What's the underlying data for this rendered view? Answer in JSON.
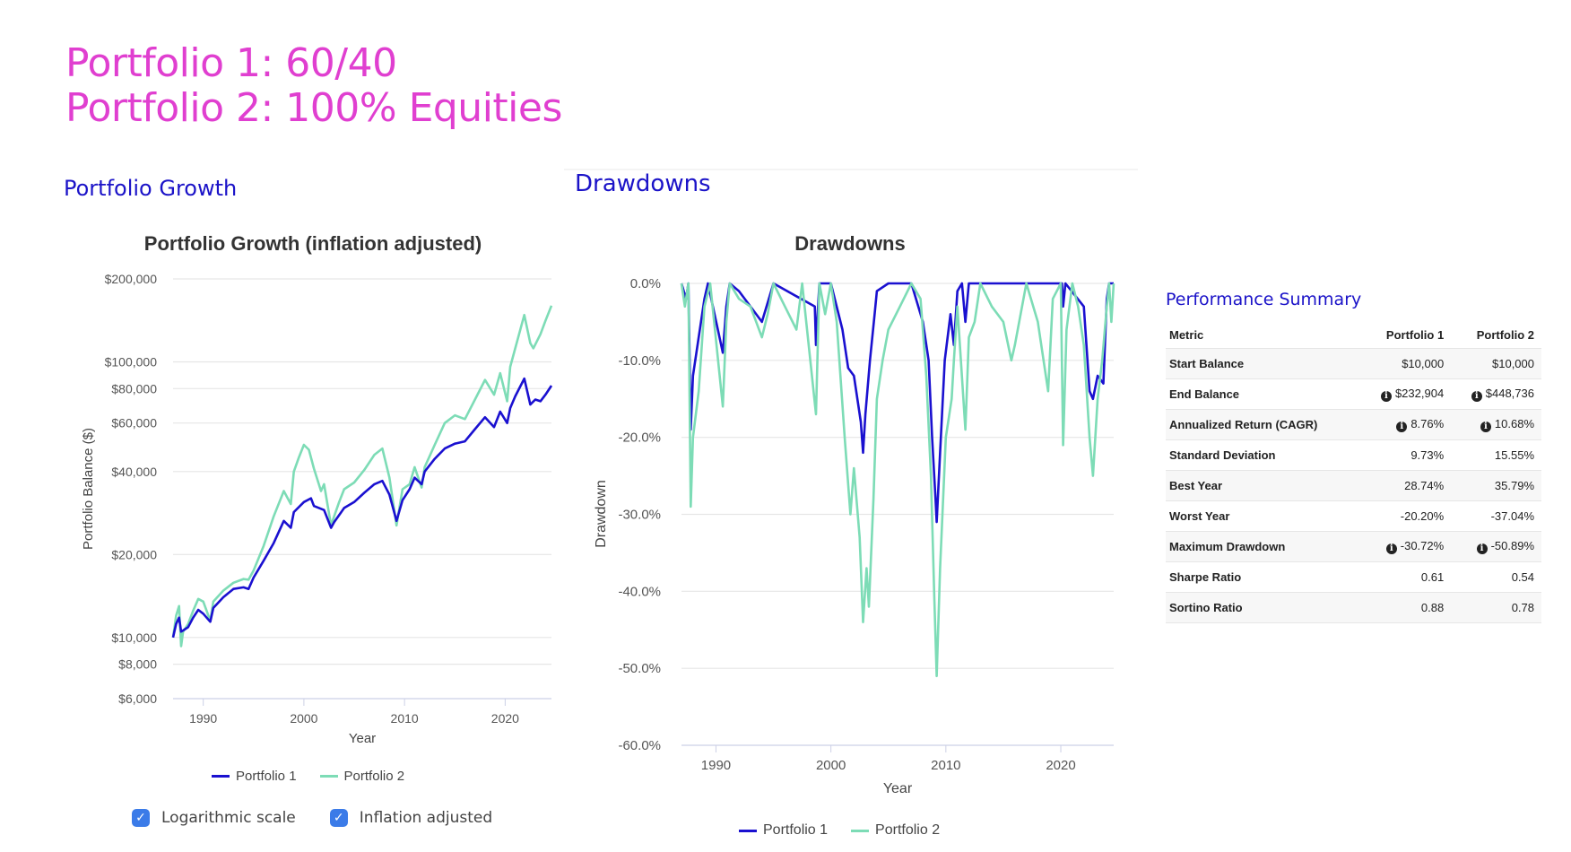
{
  "banner": {
    "line1": "Portfolio 1: 60/40",
    "line2": "Portfolio 2: 100% Equities",
    "color": "#e03fd0"
  },
  "sections": {
    "growth_heading": "Portfolio Growth",
    "drawdowns_heading": "Drawdowns",
    "performance_heading": "Performance Summary",
    "heading_color": "#1b13c8"
  },
  "series_colors": {
    "p1": "#1a10d0",
    "p2": "#7ddcb6"
  },
  "legend": {
    "p1": "Portfolio 1",
    "p2": "Portfolio 2"
  },
  "controls": {
    "log_scale": {
      "label": "Logarithmic scale",
      "checked": true
    },
    "inflation_adjusted": {
      "label": "Inflation adjusted",
      "checked": true
    },
    "check_glyph": "✓"
  },
  "chart_data": [
    {
      "type": "line",
      "title": "Portfolio Growth (inflation adjusted)",
      "xlabel": "Year",
      "ylabel": "Portfolio Balance ($)",
      "yscale": "log",
      "xlim": [
        1987,
        2024.6
      ],
      "ylim": [
        6000,
        200000
      ],
      "xticks": [
        1990,
        2000,
        2010,
        2020
      ],
      "xtick_labels": [
        "1990",
        "2000",
        "2010",
        "2020"
      ],
      "yticks": [
        200000,
        100000,
        80000,
        60000,
        40000,
        20000,
        10000,
        8000,
        6000
      ],
      "ytick_labels": [
        "$200,000",
        "$100,000",
        "$80,000",
        "$60,000",
        "$40,000",
        "$20,000",
        "$10,000",
        "$8,000",
        "$6,000"
      ],
      "grid": true,
      "legend_position": "bottom",
      "series": [
        {
          "name": "Portfolio 1",
          "x": [
            1987.0,
            1987.3,
            1987.6,
            1987.8,
            1988.0,
            1988.5,
            1989.0,
            1989.5,
            1990.0,
            1990.7,
            1991.0,
            1992.0,
            1993.0,
            1994.0,
            1994.5,
            1995.0,
            1996.0,
            1997.0,
            1998.0,
            1998.7,
            1999.0,
            2000.0,
            2000.7,
            2001.0,
            2002.0,
            2002.7,
            2003.0,
            2004.0,
            2005.0,
            2006.0,
            2007.0,
            2007.8,
            2008.5,
            2009.2,
            2009.8,
            2010.5,
            2011.0,
            2011.7,
            2012.0,
            2013.0,
            2014.0,
            2015.0,
            2016.0,
            2017.0,
            2018.0,
            2018.9,
            2019.5,
            2020.2,
            2020.5,
            2021.0,
            2021.9,
            2022.5,
            2023.0,
            2023.5,
            2024.0,
            2024.6
          ],
          "values": [
            10000,
            11200,
            11800,
            10500,
            10600,
            10900,
            11800,
            12600,
            12200,
            11400,
            12800,
            14000,
            15000,
            15200,
            15000,
            16500,
            19000,
            22000,
            26500,
            25000,
            28500,
            31000,
            32000,
            30000,
            29000,
            25000,
            26200,
            29500,
            31000,
            33500,
            36000,
            37000,
            33000,
            26500,
            31500,
            34500,
            38000,
            36000,
            40000,
            44500,
            48500,
            50500,
            51500,
            57000,
            63000,
            58000,
            66000,
            60000,
            68000,
            75000,
            87000,
            70000,
            73000,
            72000,
            76000,
            82000
          ]
        },
        {
          "name": "Portfolio 2",
          "x": [
            1987.0,
            1987.3,
            1987.6,
            1987.8,
            1988.0,
            1988.5,
            1989.0,
            1989.5,
            1990.0,
            1990.7,
            1991.0,
            1992.0,
            1993.0,
            1994.0,
            1994.5,
            1995.0,
            1996.0,
            1997.0,
            1998.0,
            1998.7,
            1999.0,
            1999.5,
            2000.0,
            2000.5,
            2001.0,
            2001.7,
            2002.0,
            2002.7,
            2003.0,
            2003.5,
            2004.0,
            2005.0,
            2006.0,
            2007.0,
            2007.8,
            2008.5,
            2009.2,
            2009.8,
            2010.5,
            2011.0,
            2011.7,
            2012.0,
            2013.0,
            2014.0,
            2015.0,
            2016.0,
            2017.0,
            2018.0,
            2018.9,
            2019.5,
            2020.2,
            2020.5,
            2021.0,
            2021.9,
            2022.5,
            2022.8,
            2023.5,
            2024.0,
            2024.6
          ],
          "values": [
            10000,
            12000,
            13000,
            9300,
            10500,
            11200,
            12500,
            13800,
            13500,
            11500,
            13500,
            14800,
            15800,
            16300,
            16200,
            17500,
            21500,
            27500,
            34000,
            30500,
            40000,
            45000,
            50000,
            48000,
            41000,
            34000,
            36000,
            25500,
            27500,
            31000,
            34500,
            36500,
            40500,
            46000,
            48500,
            38000,
            25500,
            34500,
            36000,
            41500,
            35000,
            41500,
            50000,
            60000,
            64000,
            62000,
            73000,
            86000,
            76000,
            91000,
            72000,
            96000,
            112000,
            148000,
            117000,
            112000,
            126000,
            141000,
            160000
          ]
        }
      ]
    },
    {
      "type": "line",
      "title": "Drawdowns",
      "xlabel": "Year",
      "ylabel": "Drawdown",
      "xlim": [
        1987,
        2024.6
      ],
      "ylim": [
        -60,
        0
      ],
      "xticks": [
        1990,
        2000,
        2010,
        2020
      ],
      "xtick_labels": [
        "1990",
        "2000",
        "2010",
        "2020"
      ],
      "yticks": [
        0,
        -10,
        -20,
        -30,
        -40,
        -50,
        -60
      ],
      "ytick_labels": [
        "0.0%",
        "-10.0%",
        "-20.0%",
        "-30.0%",
        "-40.0%",
        "-50.0%",
        "-60.0%"
      ],
      "grid": true,
      "legend_position": "bottom",
      "series": [
        {
          "name": "Portfolio 1",
          "x": [
            1987.0,
            1987.4,
            1987.6,
            1987.8,
            1988.0,
            1988.5,
            1989.0,
            1989.3,
            1990.6,
            1990.9,
            1991.2,
            1992.0,
            1994.0,
            1995.0,
            1998.6,
            1998.7,
            1999.0,
            2000.0,
            2001.0,
            2001.5,
            2002.0,
            2002.6,
            2002.8,
            2003.0,
            2003.4,
            2003.8,
            2004.0,
            2005.0,
            2007.0,
            2008.0,
            2008.5,
            2008.8,
            2009.1,
            2009.2,
            2009.5,
            2009.9,
            2010.4,
            2010.7,
            2011.0,
            2011.4,
            2011.7,
            2012.0,
            2020.1,
            2020.2,
            2020.4,
            2022.0,
            2022.5,
            2022.8,
            2023.2,
            2023.7,
            2024.0,
            2024.2,
            2024.6
          ],
          "values": [
            0,
            -2,
            0,
            -19,
            -12,
            -7,
            -2,
            0,
            -9,
            -3,
            0,
            -1,
            -5,
            0,
            -3,
            -8,
            0,
            0,
            -6,
            -11,
            -12,
            -18,
            -22,
            -17,
            -10,
            -4,
            -1,
            0,
            0,
            -5,
            -10,
            -20,
            -28,
            -31,
            -22,
            -10,
            -4,
            -8,
            -1,
            0,
            -5,
            0,
            0,
            -3,
            0,
            -3,
            -14,
            -15,
            -12,
            -13,
            -2,
            0,
            0
          ]
        },
        {
          "name": "Portfolio 2",
          "x": [
            1987.0,
            1987.3,
            1987.6,
            1987.8,
            1988.0,
            1988.5,
            1989.0,
            1989.5,
            1990.6,
            1990.9,
            1991.2,
            1992.0,
            1993.0,
            1994.0,
            1994.5,
            1995.0,
            1996.0,
            1997.0,
            1997.5,
            1998.7,
            1999.0,
            1999.5,
            2000.0,
            2000.5,
            2001.2,
            2001.7,
            2002.0,
            2002.5,
            2002.8,
            2003.1,
            2003.3,
            2003.7,
            2004.0,
            2004.5,
            2005.0,
            2006.0,
            2007.0,
            2007.8,
            2008.3,
            2008.7,
            2009.0,
            2009.2,
            2009.5,
            2010.0,
            2010.5,
            2010.7,
            2011.0,
            2011.7,
            2012.0,
            2012.5,
            2013.0,
            2014.0,
            2015.0,
            2015.7,
            2016.0,
            2017.0,
            2018.0,
            2018.9,
            2019.3,
            2020.0,
            2020.2,
            2020.5,
            2021.0,
            2021.5,
            2022.0,
            2022.5,
            2022.8,
            2023.2,
            2023.6,
            2024.0,
            2024.2,
            2024.4,
            2024.6
          ],
          "values": [
            0,
            -3,
            0,
            -29,
            -20,
            -14,
            -3,
            0,
            -16,
            -5,
            0,
            -2,
            -3,
            -7,
            -4,
            0,
            -3,
            -6,
            0,
            -17,
            0,
            -4,
            0,
            -5,
            -20,
            -30,
            -24,
            -33,
            -44,
            -37,
            -42,
            -28,
            -15,
            -10,
            -6,
            -3,
            0,
            -2,
            -12,
            -25,
            -41,
            -51,
            -37,
            -20,
            -15,
            -10,
            -3,
            -19,
            -7,
            -5,
            0,
            -3,
            -5,
            -10,
            -8,
            0,
            -5,
            -14,
            -2,
            0,
            -21,
            -6,
            0,
            -3,
            -8,
            -20,
            -25,
            -15,
            -10,
            -3,
            0,
            -5,
            0
          ]
        }
      ]
    }
  ],
  "performance": {
    "columns": [
      "Metric",
      "Portfolio 1",
      "Portfolio 2"
    ],
    "rows": [
      {
        "metric": "Start Balance",
        "p1": "$10,000",
        "p2": "$10,000",
        "info": false
      },
      {
        "metric": "End Balance",
        "p1": "$232,904",
        "p2": "$448,736",
        "info": true
      },
      {
        "metric": "Annualized Return (CAGR)",
        "p1": "8.76%",
        "p2": "10.68%",
        "info": true
      },
      {
        "metric": "Standard Deviation",
        "p1": "9.73%",
        "p2": "15.55%",
        "info": false
      },
      {
        "metric": "Best Year",
        "p1": "28.74%",
        "p2": "35.79%",
        "info": false
      },
      {
        "metric": "Worst Year",
        "p1": "-20.20%",
        "p2": "-37.04%",
        "info": false
      },
      {
        "metric": "Maximum Drawdown",
        "p1": "-30.72%",
        "p2": "-50.89%",
        "info": true
      },
      {
        "metric": "Sharpe Ratio",
        "p1": "0.61",
        "p2": "0.54",
        "info": false
      },
      {
        "metric": "Sortino Ratio",
        "p1": "0.88",
        "p2": "0.78",
        "info": false
      }
    ],
    "info_glyph": "i"
  }
}
